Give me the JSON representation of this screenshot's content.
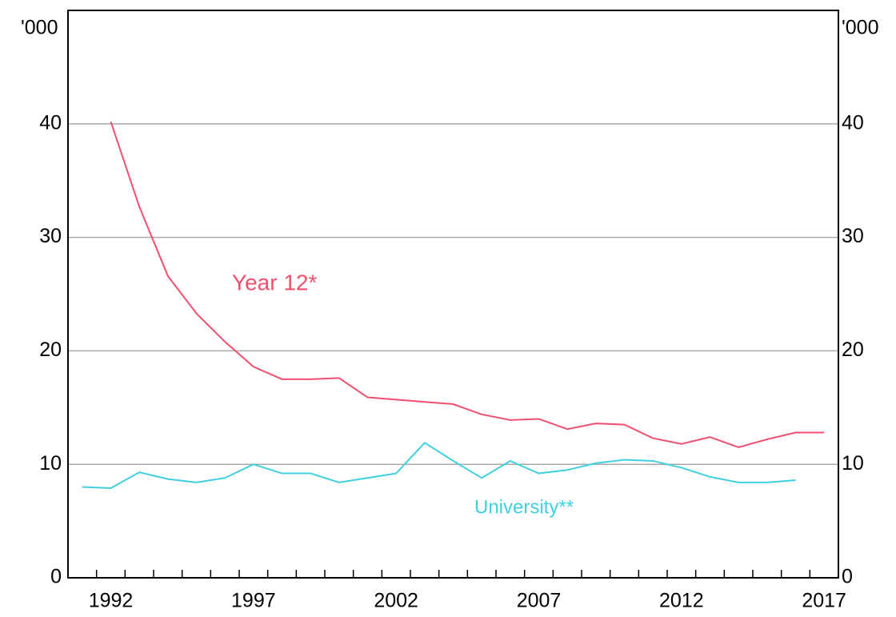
{
  "chart_data": {
    "type": "line",
    "y_unit": "'000",
    "x": [
      1991,
      1992,
      1993,
      1994,
      1995,
      1996,
      1997,
      1998,
      1999,
      2000,
      2001,
      2002,
      2003,
      2004,
      2005,
      2006,
      2007,
      2008,
      2009,
      2010,
      2011,
      2012,
      2013,
      2014,
      2015,
      2016,
      2017
    ],
    "xlim": [
      1990.5,
      2017.5
    ],
    "xticks": [
      1992,
      1997,
      2002,
      2007,
      2012,
      2017
    ],
    "xminorticks": [
      1991.5,
      1992.5,
      1993.5,
      1994.5,
      1995.5,
      1996.5,
      1997.5,
      1998.5,
      1999.5,
      2000.5,
      2001.5,
      2002.5,
      2003.5,
      2004.5,
      2005.5,
      2006.5,
      2007.5,
      2008.5,
      2009.5,
      2010.5,
      2011.5,
      2012.5,
      2013.5,
      2014.5,
      2015.5,
      2016.5
    ],
    "ylim": [
      0,
      50
    ],
    "yticks": [
      0,
      10,
      20,
      30,
      40
    ],
    "grid": true,
    "series": [
      {
        "name": "Year 12*",
        "color": "#f0506e",
        "values": [
          null,
          40.2,
          32.7,
          26.6,
          23.3,
          20.8,
          18.6,
          17.5,
          17.5,
          17.6,
          15.9,
          15.7,
          15.5,
          15.3,
          14.4,
          13.9,
          14.0,
          13.1,
          13.6,
          13.5,
          12.3,
          11.8,
          12.4,
          11.5,
          12.2,
          12.8,
          12.8
        ]
      },
      {
        "name": "University**",
        "color": "#3fd0df",
        "values": [
          8.0,
          7.9,
          9.3,
          8.7,
          8.4,
          8.8,
          10.0,
          9.2,
          9.2,
          8.4,
          8.8,
          9.2,
          11.9,
          10.3,
          8.8,
          10.3,
          9.2,
          9.5,
          10.1,
          10.4,
          10.3,
          9.7,
          8.9,
          8.4,
          8.4,
          8.6,
          null
        ]
      }
    ]
  }
}
